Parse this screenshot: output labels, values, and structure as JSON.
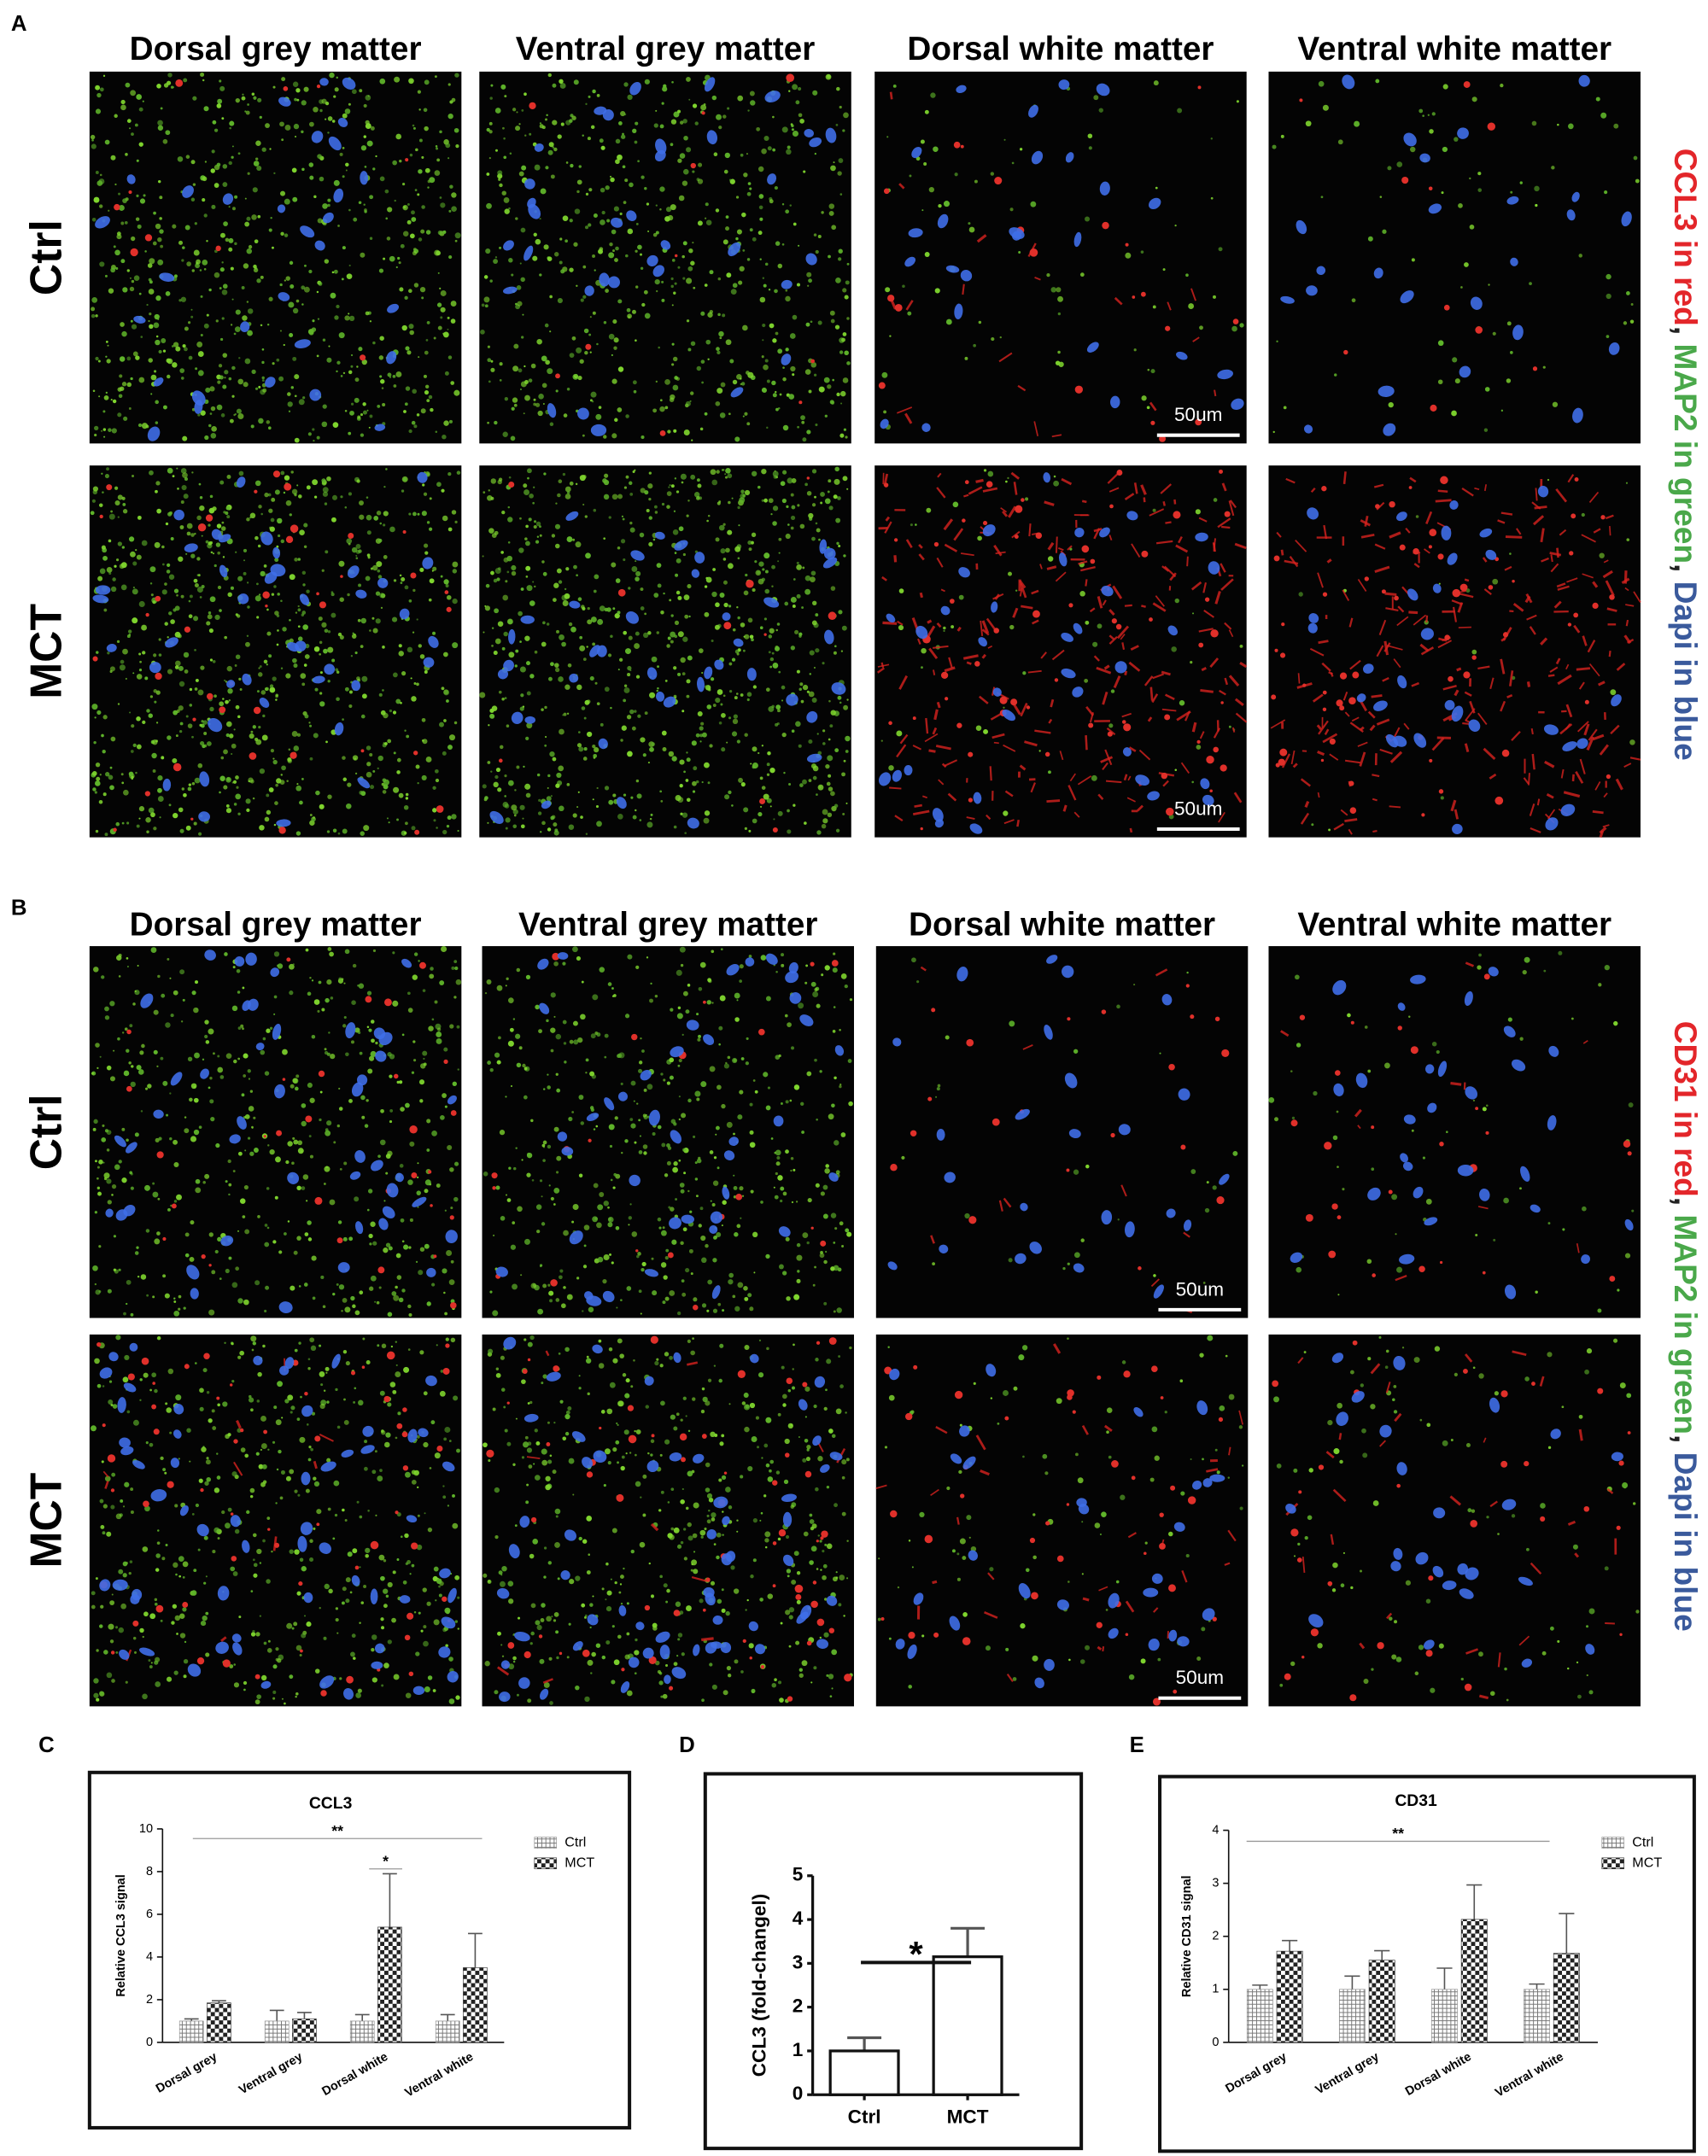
{
  "figure": {
    "panels": [
      {
        "label": "A",
        "columns": [
          "Dorsal grey matter",
          "Ventral grey matter",
          "Dorsal white matter",
          "Ventral white matter"
        ],
        "rows": [
          "Ctrl",
          "MCT"
        ],
        "legend": [
          {
            "text": "CCL3 in red",
            "color": "#e3262a"
          },
          {
            "text": ", ",
            "color": "#222222"
          },
          {
            "text": "MAP2 in green",
            "color": "#4aa84a"
          },
          {
            "text": ", ",
            "color": "#222222"
          },
          {
            "text": "Dapi in blue",
            "color": "#3a5a9c"
          }
        ],
        "scale_bars": [
          "50um",
          "50um"
        ]
      },
      {
        "label": "B",
        "columns": [
          "Dorsal grey matter",
          "Ventral grey matter",
          "Dorsal white matter",
          "Ventral white matter"
        ],
        "rows": [
          "Ctrl",
          "MCT"
        ],
        "legend": [
          {
            "text": "CD31 in red",
            "color": "#e3262a"
          },
          {
            "text": ", ",
            "color": "#222222"
          },
          {
            "text": "MAP2 in green",
            "color": "#4aa84a"
          },
          {
            "text": ", ",
            "color": "#222222"
          },
          {
            "text": "Dapi in blue",
            "color": "#3a5a9c"
          }
        ],
        "scale_bars": [
          "50um",
          "50um"
        ]
      }
    ]
  },
  "chart_data": [
    {
      "type": "grouped_bar",
      "panel_label": "C",
      "title": "CCL3",
      "ylabel": "Relative CCL3 signal",
      "categories": [
        "Dorsal grey",
        "Ventral grey",
        "Dorsal white",
        "Ventral white"
      ],
      "ylim": [
        0,
        10
      ],
      "yticks": [
        0,
        2,
        4,
        6,
        8,
        10
      ],
      "series": [
        {
          "name": "Ctrl",
          "color": "#8c8c8c",
          "pattern": "grid",
          "values": [
            1,
            1,
            1,
            1
          ],
          "errors": [
            0.1,
            0.5,
            0.3,
            0.3
          ]
        },
        {
          "name": "MCT",
          "color": "#333333",
          "pattern": "checker",
          "values": [
            1.85,
            1.1,
            5.4,
            3.5
          ],
          "errors": [
            0.1,
            0.3,
            2.5,
            1.6
          ]
        }
      ],
      "annotations": [
        "**",
        "*"
      ]
    },
    {
      "type": "bar",
      "panel_label": "D",
      "ylabel": "CCL3 (fold-changel)",
      "categories": [
        "Ctrl",
        "MCT"
      ],
      "values": [
        1,
        3.15
      ],
      "errors": [
        0.3,
        0.65
      ],
      "color": "#ffffff",
      "ylim": [
        0,
        5
      ],
      "yticks": [
        0,
        1,
        2,
        3,
        4,
        5
      ],
      "annotations": [
        "*"
      ]
    },
    {
      "type": "grouped_bar",
      "panel_label": "E",
      "title": "CD31",
      "ylabel": "Relative CD31 signal",
      "categories": [
        "Dorsal grey",
        "Ventral grey",
        "Dorsal white",
        "Ventral white"
      ],
      "ylim": [
        0,
        4
      ],
      "yticks": [
        0,
        1,
        2,
        3,
        4
      ],
      "series": [
        {
          "name": "Ctrl",
          "color": "#8c8c8c",
          "pattern": "grid",
          "values": [
            1,
            1,
            1,
            1
          ],
          "errors": [
            0.08,
            0.25,
            0.4,
            0.1
          ]
        },
        {
          "name": "MCT",
          "color": "#333333",
          "pattern": "checker",
          "values": [
            1.72,
            1.55,
            2.32,
            1.68
          ],
          "errors": [
            0.2,
            0.18,
            0.65,
            0.75
          ]
        }
      ],
      "annotations": [
        "**"
      ]
    }
  ]
}
